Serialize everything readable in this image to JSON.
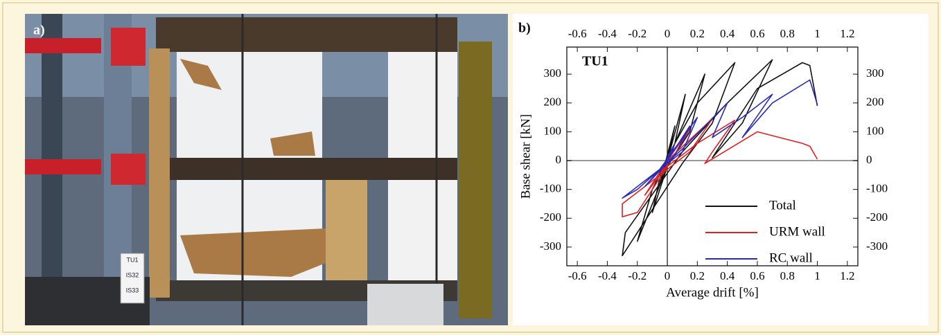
{
  "panel_a": {
    "label": "a)",
    "sign": [
      "TU1",
      "IS32",
      "IS33"
    ]
  },
  "panel_b": {
    "label": "b)"
  },
  "chart_data": {
    "type": "line",
    "annotation": "TU1",
    "x_label": "Average drift [%]",
    "y_label": "Base shear [kN]",
    "xlim": [
      -0.67,
      1.27
    ],
    "ylim": [
      -365,
      394
    ],
    "xticks": [
      -0.6,
      -0.4,
      -0.2,
      0,
      0.2,
      0.4,
      0.6,
      0.8,
      1,
      1.2
    ],
    "yticks": [
      -300,
      -200,
      -100,
      0,
      100,
      200,
      300
    ],
    "legend": "lower-right",
    "series": [
      {
        "name": "Total",
        "color": "#111111",
        "x": [
          0,
          0.05,
          0,
          -0.05,
          0,
          0.12,
          0.05,
          -0.1,
          -0.05,
          0.1,
          0.25,
          0.15,
          0,
          -0.2,
          -0.1,
          0.05,
          0.2,
          0.45,
          0.3,
          0.1,
          -0.3,
          -0.28,
          0.1,
          0.4,
          0.7,
          0.5,
          0.3,
          0.6,
          0.9,
          0.95,
          1.0
        ],
        "values": [
          0,
          120,
          20,
          -80,
          0,
          230,
          60,
          -180,
          -60,
          120,
          300,
          100,
          -20,
          -280,
          -100,
          60,
          200,
          340,
          130,
          -10,
          -330,
          -250,
          30,
          200,
          350,
          130,
          10,
          250,
          340,
          330,
          190
        ]
      },
      {
        "name": "URM wall",
        "color": "#e02020",
        "x": [
          0,
          0.05,
          0,
          -0.05,
          0,
          0.15,
          0.05,
          -0.15,
          0,
          0.3,
          0.15,
          0.05,
          -0.3,
          -0.3,
          -0.2,
          0,
          0.2,
          0.45,
          0.3,
          0.25,
          0.6,
          0.9,
          0.95,
          1.0
        ],
        "values": [
          0,
          60,
          0,
          -50,
          0,
          110,
          20,
          -120,
          0,
          145,
          30,
          -10,
          -150,
          -195,
          -180,
          -20,
          60,
          140,
          30,
          -10,
          100,
          60,
          50,
          5
        ]
      },
      {
        "name": "RC wall",
        "color": "#2a2ab8",
        "x": [
          0,
          0.05,
          -0.05,
          0,
          0.15,
          0.05,
          -0.15,
          -0.05,
          0.2,
          0.1,
          -0.3,
          -0.2,
          0.1,
          0.4,
          0.3,
          0.5,
          0.7,
          0.5,
          0.7,
          0.95,
          1.0
        ],
        "values": [
          0,
          60,
          -40,
          0,
          120,
          20,
          -90,
          -30,
          150,
          30,
          -130,
          -100,
          40,
          200,
          80,
          150,
          230,
          80,
          200,
          280,
          195
        ]
      }
    ]
  }
}
